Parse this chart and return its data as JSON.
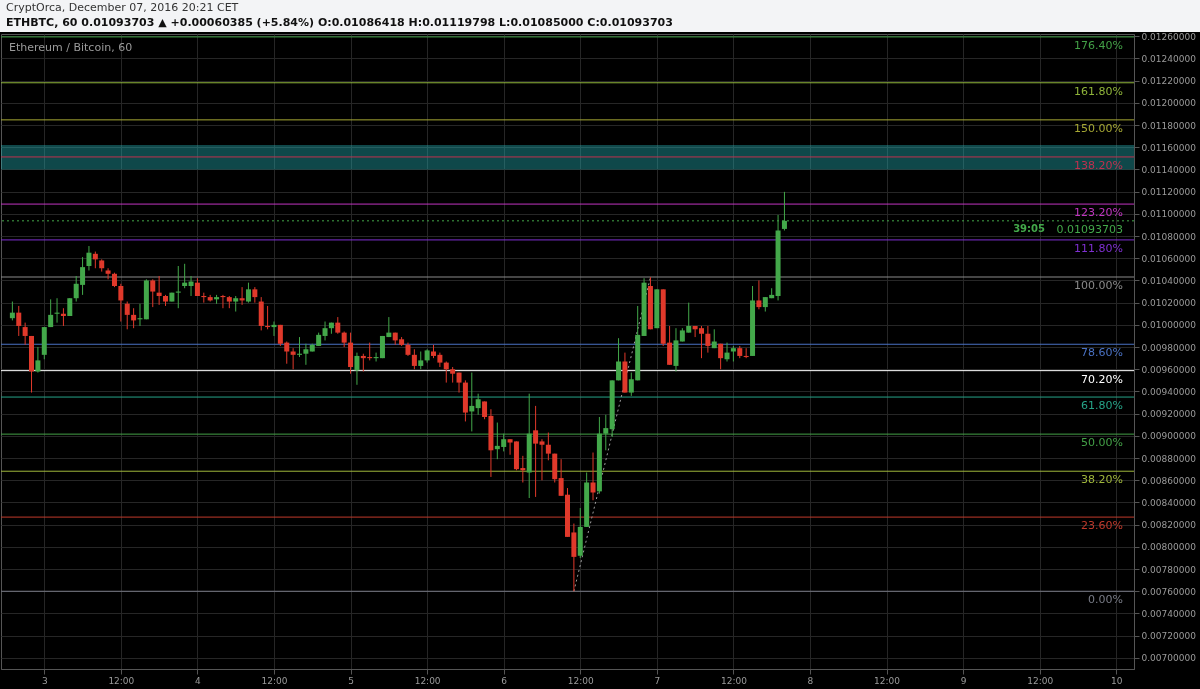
{
  "chart_data": {
    "type": "candlestick",
    "title": "ETHBTC, 60  0.01093703 ▲ +0.00060385 (+5.84%)  O:0.01086418 H:0.01119798 L:0.01085000 C:0.01093703",
    "subtitle": "Ethereum / Bitcoin, 60",
    "annotations": [
      "CryptOrca, December 07, 2016 20:21 CET",
      "39:05"
    ],
    "x": [
      "2016-12-02T19:00",
      "2016-12-02T20:00",
      "2016-12-02T21:00",
      "2016-12-02T22:00",
      "2016-12-02T23:00",
      "2016-12-03T00:00",
      "2016-12-03T01:00",
      "2016-12-03T02:00",
      "2016-12-03T03:00",
      "2016-12-03T04:00",
      "2016-12-03T05:00",
      "2016-12-03T06:00",
      "2016-12-03T07:00",
      "2016-12-03T08:00",
      "2016-12-03T09:00",
      "2016-12-03T10:00",
      "2016-12-03T11:00",
      "2016-12-03T12:00",
      "2016-12-03T13:00",
      "2016-12-03T14:00",
      "2016-12-03T15:00",
      "2016-12-03T16:00",
      "2016-12-03T17:00",
      "2016-12-03T18:00",
      "2016-12-03T19:00",
      "2016-12-03T20:00",
      "2016-12-03T21:00",
      "2016-12-03T22:00",
      "2016-12-03T23:00",
      "2016-12-04T00:00",
      "2016-12-04T01:00",
      "2016-12-04T02:00",
      "2016-12-04T03:00",
      "2016-12-04T04:00",
      "2016-12-04T05:00",
      "2016-12-04T06:00",
      "2016-12-04T07:00",
      "2016-12-04T08:00",
      "2016-12-04T09:00",
      "2016-12-04T10:00",
      "2016-12-04T11:00",
      "2016-12-04T12:00",
      "2016-12-04T13:00",
      "2016-12-04T14:00",
      "2016-12-04T15:00",
      "2016-12-04T16:00",
      "2016-12-04T17:00",
      "2016-12-04T18:00",
      "2016-12-04T19:00",
      "2016-12-04T20:00",
      "2016-12-04T21:00",
      "2016-12-04T22:00",
      "2016-12-04T23:00",
      "2016-12-05T00:00",
      "2016-12-05T01:00",
      "2016-12-05T02:00",
      "2016-12-05T03:00",
      "2016-12-05T04:00",
      "2016-12-05T05:00",
      "2016-12-05T06:00",
      "2016-12-05T07:00",
      "2016-12-05T08:00",
      "2016-12-05T09:00",
      "2016-12-05T10:00",
      "2016-12-05T11:00",
      "2016-12-05T12:00",
      "2016-12-05T13:00",
      "2016-12-05T14:00",
      "2016-12-05T15:00",
      "2016-12-05T16:00",
      "2016-12-05T17:00",
      "2016-12-05T18:00",
      "2016-12-05T19:00",
      "2016-12-05T20:00",
      "2016-12-05T21:00",
      "2016-12-05T22:00",
      "2016-12-05T23:00",
      "2016-12-06T00:00",
      "2016-12-06T01:00",
      "2016-12-06T02:00",
      "2016-12-06T03:00",
      "2016-12-06T04:00",
      "2016-12-06T05:00",
      "2016-12-06T06:00",
      "2016-12-06T07:00",
      "2016-12-06T08:00",
      "2016-12-06T09:00",
      "2016-12-06T10:00",
      "2016-12-06T11:00",
      "2016-12-06T12:00",
      "2016-12-06T13:00",
      "2016-12-06T14:00",
      "2016-12-06T15:00",
      "2016-12-06T16:00",
      "2016-12-06T17:00",
      "2016-12-06T18:00",
      "2016-12-06T19:00",
      "2016-12-06T20:00",
      "2016-12-06T21:00",
      "2016-12-06T22:00",
      "2016-12-06T23:00",
      "2016-12-07T00:00",
      "2016-12-07T01:00",
      "2016-12-07T02:00",
      "2016-12-07T03:00",
      "2016-12-07T04:00",
      "2016-12-07T05:00",
      "2016-12-07T06:00",
      "2016-12-07T07:00",
      "2016-12-07T08:00",
      "2016-12-07T09:00",
      "2016-12-07T10:00",
      "2016-12-07T11:00",
      "2016-12-07T12:00",
      "2016-12-07T13:00",
      "2016-12-07T14:00",
      "2016-12-07T15:00",
      "2016-12-07T16:00",
      "2016-12-07T17:00",
      "2016-12-07T18:00",
      "2016-12-07T19:00",
      "2016-12-07T20:00"
    ],
    "ohlc": [
      [
        0.01006,
        0.01021,
        0.01004,
        0.01011
      ],
      [
        0.01011,
        0.01017,
        0.0099,
        0.00999
      ],
      [
        0.00998,
        0.01002,
        0.00982,
        0.0099
      ],
      [
        0.0099,
        0.0099,
        0.00939,
        0.00958
      ],
      [
        0.00958,
        0.0098,
        0.00957,
        0.00968
      ],
      [
        0.00973,
        0.00998,
        0.00969,
        0.00998
      ],
      [
        0.00998,
        0.01023,
        0.00998,
        0.01009
      ],
      [
        0.0101,
        0.01024,
        0.01002,
        0.01011
      ],
      [
        0.0101,
        0.01015,
        0.00999,
        0.01008
      ],
      [
        0.01008,
        0.01024,
        0.01008,
        0.01024
      ],
      [
        0.01024,
        0.01044,
        0.01021,
        0.01037
      ],
      [
        0.01036,
        0.01061,
        0.01027,
        0.01052
      ],
      [
        0.01053,
        0.01071,
        0.01049,
        0.01065
      ],
      [
        0.01064,
        0.01066,
        0.01051,
        0.01059
      ],
      [
        0.01058,
        0.01059,
        0.01048,
        0.01051
      ],
      [
        0.01049,
        0.01051,
        0.01041,
        0.01046
      ],
      [
        0.01046,
        0.01047,
        0.01034,
        0.01035
      ],
      [
        0.01035,
        0.01037,
        0.01003,
        0.01022
      ],
      [
        0.01019,
        0.01021,
        0.00996,
        0.01009
      ],
      [
        0.01009,
        0.01015,
        0.00997,
        0.01004
      ],
      [
        0.01005,
        0.01019,
        0.00999,
        0.01006
      ],
      [
        0.01005,
        0.01041,
        0.01005,
        0.0104
      ],
      [
        0.0104,
        0.01041,
        0.01016,
        0.0103
      ],
      [
        0.01029,
        0.01044,
        0.01018,
        0.01026
      ],
      [
        0.01026,
        0.01027,
        0.01017,
        0.01021
      ],
      [
        0.01021,
        0.01029,
        0.01021,
        0.01029
      ],
      [
        0.01029,
        0.01053,
        0.01015,
        0.0103
      ],
      [
        0.01035,
        0.01055,
        0.01033,
        0.01038
      ],
      [
        0.01035,
        0.01044,
        0.01026,
        0.01039
      ],
      [
        0.01038,
        0.01042,
        0.01026,
        0.01026
      ],
      [
        0.01026,
        0.01029,
        0.0102,
        0.01025
      ],
      [
        0.01025,
        0.01027,
        0.01021,
        0.01022
      ],
      [
        0.01023,
        0.01027,
        0.01019,
        0.01025
      ],
      [
        0.01026,
        0.01027,
        0.01015,
        0.01025
      ],
      [
        0.01025,
        0.01026,
        0.01015,
        0.01021
      ],
      [
        0.01021,
        0.01026,
        0.01012,
        0.01024
      ],
      [
        0.01024,
        0.01034,
        0.01018,
        0.01022
      ],
      [
        0.01021,
        0.01038,
        0.0102,
        0.01032
      ],
      [
        0.01032,
        0.01034,
        0.0102,
        0.01025
      ],
      [
        0.01021,
        0.01025,
        0.00995,
        0.00999
      ],
      [
        0.00999,
        0.01017,
        0.00996,
        0.00998
      ],
      [
        0.00998,
        0.01003,
        0.0099,
        0.01
      ],
      [
        0.01,
        0.01,
        0.00981,
        0.00983
      ],
      [
        0.00984,
        0.00985,
        0.00965,
        0.00976
      ],
      [
        0.00976,
        0.00979,
        0.0096,
        0.00973
      ],
      [
        0.00973,
        0.00989,
        0.00971,
        0.00974
      ],
      [
        0.00974,
        0.00983,
        0.00964,
        0.00978
      ],
      [
        0.00976,
        0.00983,
        0.00976,
        0.00982
      ],
      [
        0.00981,
        0.00993,
        0.00981,
        0.00991
      ],
      [
        0.0099,
        0.01003,
        0.00986,
        0.00997
      ],
      [
        0.00997,
        0.01002,
        0.00992,
        0.01002
      ],
      [
        0.01002,
        0.01007,
        0.00992,
        0.00993
      ],
      [
        0.00993,
        0.00994,
        0.0098,
        0.00984
      ],
      [
        0.00984,
        0.00993,
        0.00956,
        0.00962
      ],
      [
        0.00959,
        0.00975,
        0.00946,
        0.00972
      ],
      [
        0.00972,
        0.00974,
        0.00958,
        0.0097
      ],
      [
        0.00971,
        0.00984,
        0.00968,
        0.0097
      ],
      [
        0.0097,
        0.00975,
        0.00967,
        0.00971
      ],
      [
        0.0097,
        0.0099,
        0.0097,
        0.0099
      ],
      [
        0.00989,
        0.01007,
        0.00989,
        0.00993
      ],
      [
        0.00993,
        0.00993,
        0.00982,
        0.00986
      ],
      [
        0.00987,
        0.00989,
        0.00981,
        0.00982
      ],
      [
        0.00982,
        0.00984,
        0.00972,
        0.00973
      ],
      [
        0.00973,
        0.00978,
        0.0096,
        0.00963
      ],
      [
        0.00963,
        0.00976,
        0.0096,
        0.00968
      ],
      [
        0.00968,
        0.00978,
        0.00966,
        0.00977
      ],
      [
        0.00976,
        0.00982,
        0.0097,
        0.00972
      ],
      [
        0.00973,
        0.00975,
        0.00962,
        0.00966
      ],
      [
        0.00966,
        0.00967,
        0.00948,
        0.0096
      ],
      [
        0.0096,
        0.00962,
        0.00948,
        0.00956
      ],
      [
        0.00957,
        0.00957,
        0.00939,
        0.00948
      ],
      [
        0.00948,
        0.0095,
        0.00913,
        0.00921
      ],
      [
        0.00922,
        0.00957,
        0.00904,
        0.00927
      ],
      [
        0.00925,
        0.00938,
        0.00919,
        0.00933
      ],
      [
        0.00931,
        0.00931,
        0.00915,
        0.00917
      ],
      [
        0.00918,
        0.00924,
        0.00863,
        0.00887
      ],
      [
        0.00888,
        0.00912,
        0.00879,
        0.00891
      ],
      [
        0.0089,
        0.00902,
        0.00886,
        0.00897
      ],
      [
        0.00897,
        0.00897,
        0.00883,
        0.00894
      ],
      [
        0.00895,
        0.00895,
        0.00869,
        0.0087
      ],
      [
        0.00871,
        0.00882,
        0.00858,
        0.00869
      ],
      [
        0.00867,
        0.00938,
        0.00844,
        0.00902
      ],
      [
        0.00905,
        0.00927,
        0.00845,
        0.00893
      ],
      [
        0.00895,
        0.00897,
        0.0086,
        0.00892
      ],
      [
        0.00892,
        0.00903,
        0.00878,
        0.00884
      ],
      [
        0.00884,
        0.00884,
        0.00858,
        0.00861
      ],
      [
        0.00862,
        0.00879,
        0.00846,
        0.00846
      ],
      [
        0.00847,
        0.00853,
        0.00809,
        0.00809
      ],
      [
        0.00813,
        0.00821,
        0.0076,
        0.00791
      ],
      [
        0.00792,
        0.00835,
        0.0079,
        0.00818
      ],
      [
        0.00818,
        0.00867,
        0.00818,
        0.00858
      ],
      [
        0.00858,
        0.00885,
        0.00842,
        0.00849
      ],
      [
        0.0085,
        0.00917,
        0.00848,
        0.00902
      ],
      [
        0.00902,
        0.00919,
        0.00887,
        0.00907
      ],
      [
        0.00906,
        0.0095,
        0.00899,
        0.0095
      ],
      [
        0.0095,
        0.00988,
        0.0095,
        0.00967
      ],
      [
        0.00967,
        0.00975,
        0.00939,
        0.00939
      ],
      [
        0.00939,
        0.00957,
        0.00936,
        0.00951
      ],
      [
        0.0095,
        0.01017,
        0.0095,
        0.00991
      ],
      [
        0.0099,
        0.01042,
        0.0099,
        0.01038
      ],
      [
        0.01035,
        0.01043,
        0.00996,
        0.00996
      ],
      [
        0.00997,
        0.01032,
        0.00997,
        0.01032
      ],
      [
        0.01032,
        0.01032,
        0.00981,
        0.00983
      ],
      [
        0.00984,
        0.00999,
        0.00964,
        0.00964
      ],
      [
        0.00963,
        0.00997,
        0.00958,
        0.00986
      ],
      [
        0.00985,
        0.00997,
        0.00985,
        0.00995
      ],
      [
        0.00993,
        0.0102,
        0.00993,
        0.00999
      ],
      [
        0.00999,
        0.00999,
        0.00989,
        0.00996
      ],
      [
        0.00997,
        0.00999,
        0.0097,
        0.00992
      ],
      [
        0.00992,
        0.00999,
        0.00975,
        0.00981
      ],
      [
        0.00979,
        0.00996,
        0.00979,
        0.00985
      ],
      [
        0.00983,
        0.00983,
        0.0096,
        0.0097
      ],
      [
        0.00969,
        0.00984,
        0.00967,
        0.00975
      ],
      [
        0.00976,
        0.00981,
        0.00967,
        0.00979
      ],
      [
        0.00979,
        0.00981,
        0.0097,
        0.00972
      ],
      [
        0.00972,
        0.00979,
        0.0097,
        0.00971
      ],
      [
        0.00972,
        0.01035,
        0.00972,
        0.01022
      ],
      [
        0.01022,
        0.0104,
        0.01014,
        0.01016
      ],
      [
        0.01016,
        0.01025,
        0.01012,
        0.01025
      ],
      [
        0.01024,
        0.01033,
        0.01024,
        0.01027
      ],
      [
        0.01026,
        0.01099,
        0.01022,
        0.01085
      ],
      [
        0.01086418,
        0.01119798,
        0.01085,
        0.01093703
      ]
    ],
    "colors": [
      "#43a84a",
      "#e0392b",
      "#e0392b",
      "#e0392b",
      "#43a84a",
      "#43a84a",
      "#43a84a",
      "#43a84a",
      "#e0392b",
      "#43a84a",
      "#43a84a",
      "#43a84a",
      "#43a84a",
      "#e0392b",
      "#e0392b",
      "#e0392b",
      "#e0392b",
      "#e0392b",
      "#e0392b",
      "#e0392b",
      "#43a84a",
      "#43a84a",
      "#e0392b",
      "#e0392b",
      "#e0392b",
      "#43a84a",
      "#43a84a",
      "#43a84a",
      "#43a84a",
      "#e0392b",
      "#e0392b",
      "#e0392b",
      "#43a84a",
      "#e0392b",
      "#e0392b",
      "#43a84a",
      "#e0392b",
      "#43a84a",
      "#e0392b",
      "#e0392b",
      "#e0392b",
      "#43a84a",
      "#e0392b",
      "#e0392b",
      "#e0392b",
      "#43a84a",
      "#43a84a",
      "#43a84a",
      "#43a84a",
      "#43a84a",
      "#43a84a",
      "#e0392b",
      "#e0392b",
      "#e0392b",
      "#43a84a",
      "#e0392b",
      "#e0392b",
      "#43a84a",
      "#43a84a",
      "#43a84a",
      "#e0392b",
      "#e0392b",
      "#e0392b",
      "#e0392b",
      "#43a84a",
      "#43a84a",
      "#e0392b",
      "#e0392b",
      "#e0392b",
      "#e0392b",
      "#e0392b",
      "#e0392b",
      "#43a84a",
      "#43a84a",
      "#e0392b",
      "#e0392b",
      "#43a84a",
      "#43a84a",
      "#e0392b",
      "#e0392b",
      "#e0392b",
      "#43a84a",
      "#e0392b",
      "#e0392b",
      "#e0392b",
      "#e0392b",
      "#e0392b",
      "#e0392b",
      "#e0392b",
      "#43a84a",
      "#43a84a",
      "#e0392b",
      "#43a84a",
      "#43a84a",
      "#43a84a",
      "#43a84a",
      "#e0392b",
      "#43a84a",
      "#43a84a",
      "#43a84a",
      "#e0392b",
      "#43a84a",
      "#e0392b",
      "#e0392b",
      "#43a84a",
      "#43a84a",
      "#43a84a",
      "#e0392b",
      "#e0392b",
      "#e0392b",
      "#43a84a",
      "#e0392b",
      "#43a84a",
      "#43a84a",
      "#e0392b",
      "#e0392b",
      "#43a84a",
      "#e0392b",
      "#43a84a",
      "#43a84a",
      "#43a84a",
      "#43a84a"
    ],
    "series": [
      {
        "type": "line",
        "x": [
          "2016-12-06T11:00",
          "2016-12-06T23:00"
        ],
        "values": [
          0.0076,
          0.01043
        ],
        "color": "#9e9e9e",
        "line_style": "dotted"
      }
    ],
    "ref_lines": [
      {
        "axis": "y2",
        "value": 0,
        "label": "0.00%",
        "color": "#787b86"
      },
      {
        "axis": "y2",
        "value": 23.6,
        "label": "23.60%",
        "color": "#c0392b"
      },
      {
        "axis": "y2",
        "value": 38.2,
        "label": "38.20%",
        "color": "#9fb63b"
      },
      {
        "axis": "y2",
        "value": 50,
        "label": "50.00%",
        "color": "#43a047"
      },
      {
        "axis": "y2",
        "value": 61.8,
        "label": "61.80%",
        "color": "#26a387"
      },
      {
        "axis": "y2",
        "value": 70.2,
        "label": "70.20%",
        "color": "#ffffff"
      },
      {
        "axis": "y2",
        "value": 78.6,
        "label": "78.60%",
        "color": "#4a72c4"
      },
      {
        "axis": "y2",
        "value": 100,
        "label": "100.00%",
        "color": "#8a8a8a"
      },
      {
        "axis": "y2",
        "value": 111.8,
        "label": "111.80%",
        "color": "#7e2fd0"
      },
      {
        "axis": "y2",
        "value": 123.2,
        "label": "123.20%",
        "color": "#c034c0"
      },
      {
        "axis": "y2",
        "value": 138.2,
        "label": "138.20%",
        "color": "#c0304e"
      },
      {
        "axis": "y2",
        "value": 150,
        "label": "150.00%",
        "color": "#a6a834"
      },
      {
        "axis": "y2",
        "value": 161.8,
        "label": "161.80%",
        "color": "#8fb43a"
      },
      {
        "axis": "y2",
        "value": 176.4,
        "label": "176.40%",
        "color": "#43a047"
      },
      {
        "axis": "y",
        "value": 0.01093703,
        "label": "0.01093703",
        "color": "#43a84a",
        "line_style": "dotted"
      }
    ],
    "bands": [
      {
        "axis": "y",
        "from": 0.0114,
        "to": 0.01162,
        "color": "#26b5b8"
      }
    ],
    "xlim": [
      "2016-12-02T18:00",
      "2016-12-10T02:00"
    ],
    "xticks": [
      {
        "value": "2016-12-03T00:00",
        "label": "3"
      },
      {
        "value": "2016-12-03T12:00",
        "label": "12:00"
      },
      {
        "value": "2016-12-04T00:00",
        "label": "4"
      },
      {
        "value": "2016-12-04T12:00",
        "label": "12:00"
      },
      {
        "value": "2016-12-05T00:00",
        "label": "5"
      },
      {
        "value": "2016-12-05T12:00",
        "label": "12:00"
      },
      {
        "value": "2016-12-06T00:00",
        "label": "6"
      },
      {
        "value": "2016-12-06T12:00",
        "label": "12:00"
      },
      {
        "value": "2016-12-07T00:00",
        "label": "7"
      },
      {
        "value": "2016-12-07T12:00",
        "label": "12:00"
      },
      {
        "value": "2016-12-08T00:00",
        "label": "8"
      },
      {
        "value": "2016-12-08T12:00",
        "label": "12:00"
      },
      {
        "value": "2016-12-09T00:00",
        "label": "9"
      },
      {
        "value": "2016-12-09T12:00",
        "label": "12:00"
      },
      {
        "value": "2016-12-10T00:00",
        "label": "10"
      }
    ],
    "ylim": [
      0.0069,
      0.01262
    ],
    "y2lim": [
      -24.73,
      177.32
    ],
    "yticks": [
      {
        "value": 0.007,
        "label": "0.00700000"
      },
      {
        "value": 0.0072,
        "label": "0.00720000"
      },
      {
        "value": 0.0074,
        "label": "0.00740000"
      },
      {
        "value": 0.0076,
        "label": "0.00760000"
      },
      {
        "value": 0.0078,
        "label": "0.00780000"
      },
      {
        "value": 0.008,
        "label": "0.00800000"
      },
      {
        "value": 0.0082,
        "label": "0.00820000"
      },
      {
        "value": 0.0084,
        "label": "0.00840000"
      },
      {
        "value": 0.0086,
        "label": "0.00860000"
      },
      {
        "value": 0.0088,
        "label": "0.00880000"
      },
      {
        "value": 0.009,
        "label": "0.00900000"
      },
      {
        "value": 0.0092,
        "label": "0.00920000"
      },
      {
        "value": 0.0094,
        "label": "0.00940000"
      },
      {
        "value": 0.0096,
        "label": "0.00960000"
      },
      {
        "value": 0.0098,
        "label": "0.00980000"
      },
      {
        "value": 0.01,
        "label": "0.01000000"
      },
      {
        "value": 0.0102,
        "label": "0.01020000"
      },
      {
        "value": 0.0104,
        "label": "0.01040000"
      },
      {
        "value": 0.0106,
        "label": "0.01060000"
      },
      {
        "value": 0.0108,
        "label": "0.01080000"
      },
      {
        "value": 0.011,
        "label": "0.01100000"
      },
      {
        "value": 0.0112,
        "label": "0.01120000"
      },
      {
        "value": 0.0114,
        "label": "0.01140000"
      },
      {
        "value": 0.0116,
        "label": "0.01160000"
      },
      {
        "value": 0.0118,
        "label": "0.01180000"
      },
      {
        "value": 0.012,
        "label": "0.01200000"
      },
      {
        "value": 0.0122,
        "label": "0.01220000"
      },
      {
        "value": 0.0124,
        "label": "0.01240000"
      },
      {
        "value": 0.0126,
        "label": "0.01260000"
      }
    ],
    "grid": true
  }
}
